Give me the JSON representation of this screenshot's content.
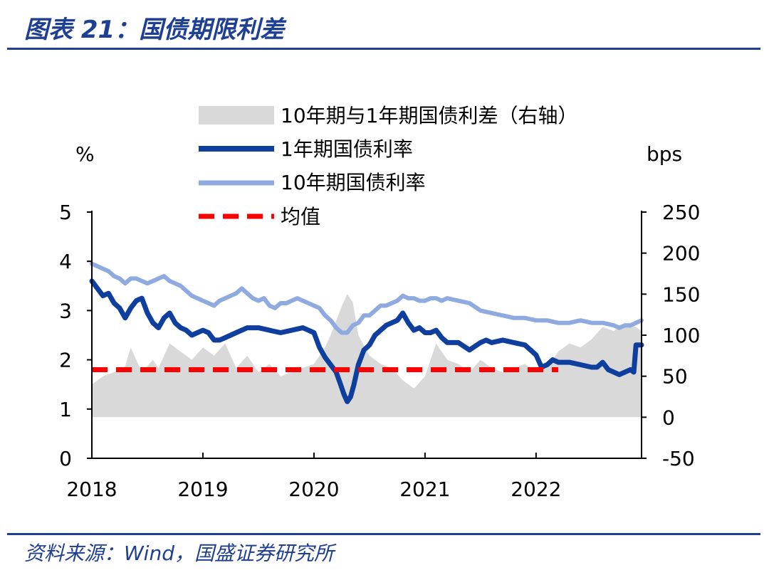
{
  "title": "图表 21：国债期限利差",
  "source": "资料来源：Wind，国盛证券研究所",
  "chart_data": {
    "type": "line",
    "left_unit": "%",
    "right_unit": "bps",
    "x_ticks": [
      "2018",
      "2019",
      "2020",
      "2021",
      "2022"
    ],
    "x_range": [
      2018.0,
      2022.95
    ],
    "y_left": {
      "range": [
        0,
        5
      ],
      "ticks": [
        "0",
        "1",
        "2",
        "3",
        "4",
        "5"
      ]
    },
    "y_right": {
      "range": [
        -50,
        250
      ],
      "ticks": [
        "-50",
        "0",
        "50",
        "100",
        "150",
        "200",
        "250"
      ]
    },
    "legend": [
      {
        "name": "10年期与1年期国债利差（右轴）",
        "style": "area"
      },
      {
        "name": "1年期国债利率",
        "style": "thick-line"
      },
      {
        "name": "10年期国债利率",
        "style": "line"
      },
      {
        "name": "均值",
        "style": "dashed"
      }
    ],
    "colors": {
      "spread": "#d9d9d9",
      "y1": "#0e3e9e",
      "y10": "#8eaadf",
      "mean": "#ff0000"
    },
    "series": [
      {
        "name": "10年期与1年期国债利差（右轴）",
        "axis": "right",
        "x": [
          2018.0,
          2018.1,
          2018.2,
          2018.3,
          2018.35,
          2018.45,
          2018.55,
          2018.6,
          2018.7,
          2018.8,
          2018.9,
          2019.0,
          2019.1,
          2019.2,
          2019.3,
          2019.4,
          2019.5,
          2019.6,
          2019.7,
          2019.8,
          2019.9,
          2020.0,
          2020.1,
          2020.15,
          2020.25,
          2020.3,
          2020.35,
          2020.4,
          2020.5,
          2020.6,
          2020.7,
          2020.8,
          2020.9,
          2021.0,
          2021.1,
          2021.2,
          2021.3,
          2021.4,
          2021.5,
          2021.6,
          2021.7,
          2021.8,
          2021.9,
          2022.0,
          2022.1,
          2022.2,
          2022.3,
          2022.4,
          2022.5,
          2022.6,
          2022.7,
          2022.8,
          2022.9,
          2022.95
        ],
        "y": [
          40,
          50,
          55,
          62,
          85,
          55,
          70,
          60,
          90,
          80,
          70,
          85,
          75,
          90,
          60,
          75,
          55,
          65,
          50,
          55,
          60,
          65,
          85,
          100,
          135,
          150,
          140,
          100,
          75,
          65,
          60,
          45,
          35,
          50,
          90,
          70,
          65,
          55,
          70,
          60,
          55,
          60,
          65,
          55,
          60,
          80,
          90,
          85,
          95,
          110,
          105,
          115,
          110,
          105
        ]
      },
      {
        "name": "1年期国债利率",
        "axis": "left",
        "x": [
          2018.0,
          2018.05,
          2018.1,
          2018.15,
          2018.2,
          2018.25,
          2018.3,
          2018.35,
          2018.4,
          2018.45,
          2018.5,
          2018.55,
          2018.6,
          2018.65,
          2018.7,
          2018.75,
          2018.8,
          2018.85,
          2018.9,
          2018.95,
          2019.0,
          2019.05,
          2019.1,
          2019.15,
          2019.2,
          2019.3,
          2019.4,
          2019.5,
          2019.6,
          2019.7,
          2019.8,
          2019.9,
          2020.0,
          2020.05,
          2020.1,
          2020.15,
          2020.2,
          2020.24,
          2020.27,
          2020.3,
          2020.33,
          2020.36,
          2020.4,
          2020.45,
          2020.5,
          2020.55,
          2020.6,
          2020.65,
          2020.7,
          2020.75,
          2020.8,
          2020.85,
          2020.9,
          2020.95,
          2021.0,
          2021.05,
          2021.1,
          2021.15,
          2021.2,
          2021.3,
          2021.4,
          2021.5,
          2021.55,
          2021.6,
          2021.7,
          2021.8,
          2021.9,
          2022.0,
          2022.05,
          2022.1,
          2022.15,
          2022.2,
          2022.3,
          2022.4,
          2022.5,
          2022.55,
          2022.6,
          2022.65,
          2022.7,
          2022.75,
          2022.8,
          2022.85,
          2022.88,
          2022.9,
          2022.95
        ],
        "y": [
          3.6,
          3.45,
          3.3,
          3.35,
          3.15,
          3.05,
          2.85,
          3.05,
          3.2,
          3.25,
          2.95,
          2.75,
          2.65,
          2.85,
          2.95,
          2.75,
          2.65,
          2.6,
          2.5,
          2.55,
          2.6,
          2.55,
          2.4,
          2.4,
          2.45,
          2.55,
          2.65,
          2.65,
          2.6,
          2.55,
          2.6,
          2.65,
          2.55,
          2.25,
          2.05,
          1.9,
          1.75,
          1.5,
          1.3,
          1.15,
          1.25,
          1.5,
          1.9,
          2.2,
          2.3,
          2.5,
          2.6,
          2.7,
          2.75,
          2.8,
          2.95,
          2.75,
          2.6,
          2.65,
          2.55,
          2.55,
          2.6,
          2.45,
          2.35,
          2.35,
          2.2,
          2.35,
          2.4,
          2.35,
          2.4,
          2.35,
          2.3,
          2.1,
          1.85,
          1.9,
          2.0,
          1.95,
          1.95,
          1.9,
          1.85,
          1.85,
          1.95,
          1.8,
          1.75,
          1.7,
          1.75,
          1.8,
          1.75,
          2.3,
          2.3
        ]
      },
      {
        "name": "10年期国债利率",
        "axis": "left",
        "x": [
          2018.0,
          2018.05,
          2018.1,
          2018.15,
          2018.2,
          2018.25,
          2018.3,
          2018.35,
          2018.4,
          2018.45,
          2018.5,
          2018.55,
          2018.6,
          2018.65,
          2018.7,
          2018.75,
          2018.8,
          2018.85,
          2018.9,
          2018.95,
          2019.0,
          2019.05,
          2019.1,
          2019.15,
          2019.2,
          2019.25,
          2019.3,
          2019.35,
          2019.4,
          2019.45,
          2019.5,
          2019.55,
          2019.6,
          2019.65,
          2019.7,
          2019.75,
          2019.8,
          2019.85,
          2019.9,
          2019.95,
          2020.0,
          2020.05,
          2020.1,
          2020.15,
          2020.2,
          2020.25,
          2020.3,
          2020.35,
          2020.4,
          2020.45,
          2020.5,
          2020.55,
          2020.6,
          2020.65,
          2020.7,
          2020.75,
          2020.8,
          2020.85,
          2020.9,
          2020.95,
          2021.0,
          2021.05,
          2021.1,
          2021.15,
          2021.2,
          2021.3,
          2021.4,
          2021.5,
          2021.6,
          2021.7,
          2021.8,
          2021.9,
          2022.0,
          2022.1,
          2022.2,
          2022.3,
          2022.4,
          2022.5,
          2022.6,
          2022.7,
          2022.75,
          2022.8,
          2022.85,
          2022.9,
          2022.95
        ],
        "y": [
          3.95,
          3.9,
          3.85,
          3.8,
          3.7,
          3.65,
          3.55,
          3.65,
          3.65,
          3.6,
          3.55,
          3.6,
          3.65,
          3.7,
          3.6,
          3.55,
          3.5,
          3.4,
          3.3,
          3.25,
          3.2,
          3.15,
          3.1,
          3.2,
          3.25,
          3.3,
          3.35,
          3.45,
          3.35,
          3.25,
          3.2,
          3.25,
          3.1,
          3.05,
          3.15,
          3.15,
          3.2,
          3.25,
          3.2,
          3.15,
          3.1,
          3.05,
          2.9,
          2.8,
          2.65,
          2.55,
          2.55,
          2.7,
          2.75,
          2.9,
          2.9,
          3.0,
          3.1,
          3.1,
          3.15,
          3.2,
          3.3,
          3.25,
          3.25,
          3.2,
          3.2,
          3.25,
          3.25,
          3.2,
          3.25,
          3.2,
          3.15,
          3.0,
          2.95,
          2.9,
          2.85,
          2.85,
          2.8,
          2.8,
          2.75,
          2.75,
          2.8,
          2.75,
          2.75,
          2.7,
          2.65,
          2.7,
          2.7,
          2.75,
          2.8
        ]
      },
      {
        "name": "均值",
        "axis": "left",
        "x": [
          2018.0,
          2022.2
        ],
        "y": [
          1.8,
          1.8
        ]
      }
    ]
  }
}
